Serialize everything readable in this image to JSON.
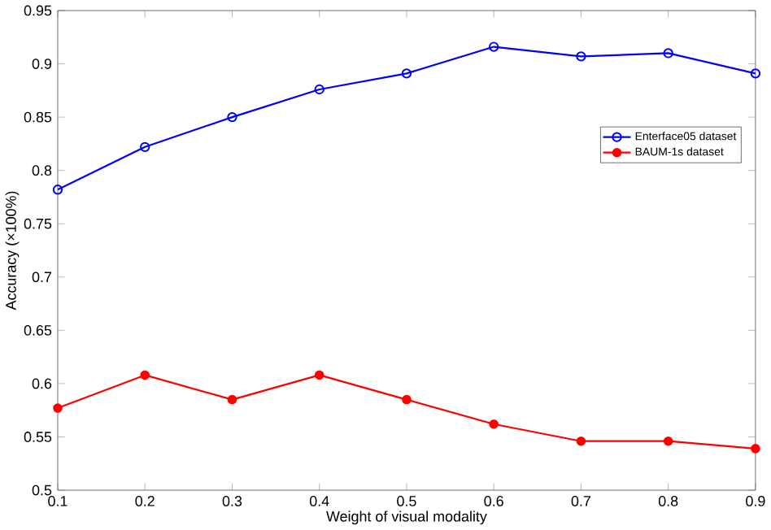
{
  "chart_data": {
    "type": "line",
    "xlabel": "Weight of visual modality",
    "ylabel": "Accuracy (×100%)",
    "x": [
      0.1,
      0.2,
      0.3,
      0.4,
      0.5,
      0.6,
      0.7,
      0.8,
      0.9
    ],
    "series": [
      {
        "name": "Enterface05 dataset",
        "color": "#0000ff",
        "marker": "circle",
        "values": [
          0.782,
          0.822,
          0.85,
          0.876,
          0.891,
          0.916,
          0.907,
          0.91,
          0.891
        ]
      },
      {
        "name": "BAUM-1s dataset",
        "color": "#ff0000",
        "marker": "dot",
        "values": [
          0.577,
          0.608,
          0.585,
          0.608,
          0.585,
          0.562,
          0.546,
          0.546,
          0.539
        ]
      }
    ],
    "xlim": [
      0.1,
      0.9
    ],
    "ylim": [
      0.5,
      0.95
    ],
    "xticks": [
      0.1,
      0.2,
      0.3,
      0.4,
      0.5,
      0.6,
      0.7,
      0.8,
      0.9
    ],
    "yticks": [
      0.5,
      0.55,
      0.6,
      0.65,
      0.7,
      0.75,
      0.8,
      0.85,
      0.9,
      0.95
    ],
    "legend": "right",
    "grid": false,
    "line_style": "solid"
  }
}
